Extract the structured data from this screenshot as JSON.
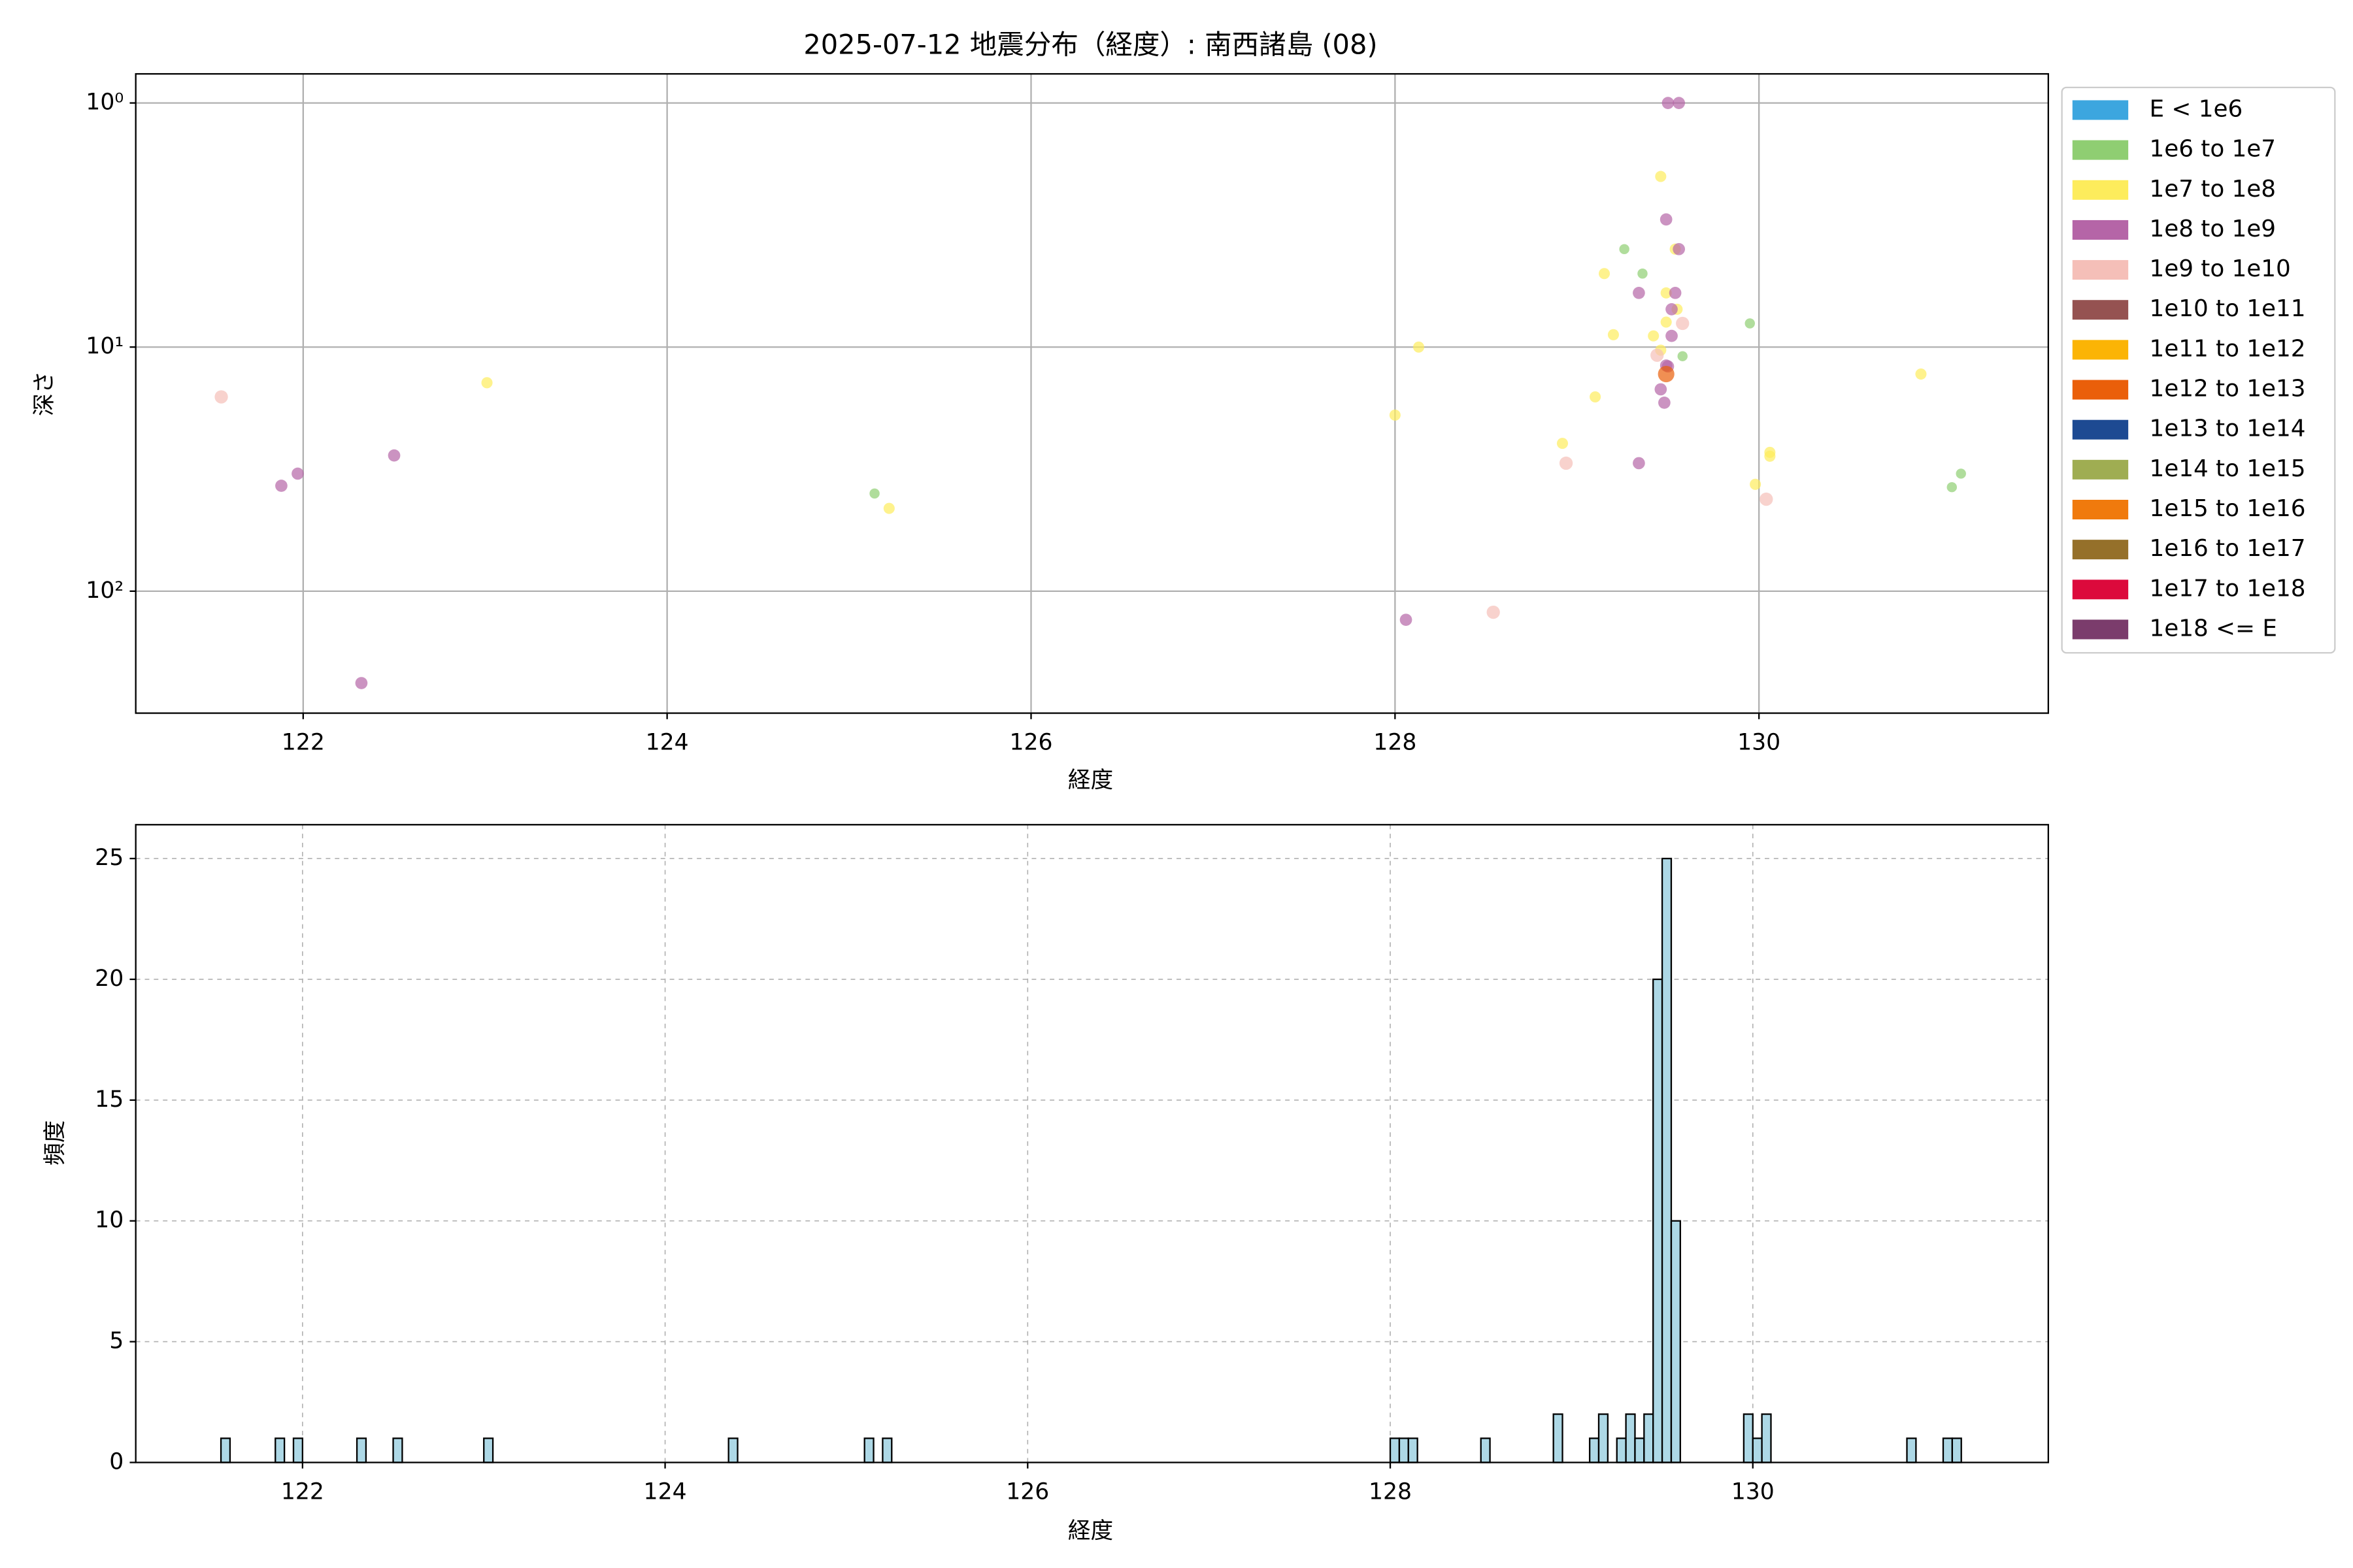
{
  "chart_data": [
    {
      "type": "scatter",
      "title": "2025-07-12 地震分布（経度）: 南西諸島 (08)",
      "xlabel": "経度",
      "ylabel": "深さ",
      "xlim": [
        121.08,
        131.59
      ],
      "xticks": [
        122,
        124,
        126,
        128,
        130
      ],
      "ylim": [
        0.76,
        316
      ],
      "yscale": "log",
      "y_inverted": true,
      "yticks": [
        {
          "value": 1,
          "label": "10⁰"
        },
        {
          "value": 10,
          "label": "10¹"
        },
        {
          "value": 100,
          "label": "10²"
        }
      ],
      "grid": true,
      "legend": "outside right",
      "series": [
        {
          "name": "E < 1e6",
          "color": "#3ca6df",
          "x": [],
          "values": []
        },
        {
          "name": "1e6 to 1e7",
          "color": "#8fce72",
          "x": [
            125.14,
            129.26,
            129.36,
            129.95,
            131.06,
            131.11,
            129.58
          ],
          "values": [
            39.8,
            3.97,
            5.0,
            8.0,
            37.5,
            33,
            10.9
          ]
        },
        {
          "name": "1e7 to 1e8",
          "color": "#fdec5c",
          "x": [
            123.01,
            125.22,
            128.13,
            128.0,
            128.92,
            129.1,
            129.15,
            129.2,
            129.46,
            129.49,
            129.55,
            129.49,
            129.42,
            129.54,
            130.06,
            130.06,
            129.98,
            130.89,
            129.46
          ],
          "values": [
            14.0,
            45.8,
            10,
            19,
            24.8,
            16,
            5.0,
            8.9,
            2.0,
            6.0,
            7.0,
            7.9,
            9.0,
            3.97,
            27,
            28,
            36.5,
            12.9,
            10.3
          ]
        },
        {
          "name": "1e8 to 1e9",
          "color": "#b565a7",
          "x": [
            121.88,
            121.97,
            122.5,
            122.32,
            128.06,
            129.34,
            129.5,
            129.56,
            129.49,
            129.34,
            129.54,
            129.52,
            129.52,
            129.5,
            129.46,
            129.48,
            129.49,
            129.56
          ],
          "values": [
            37,
            33,
            27.8,
            238,
            131,
            29.9,
            1.0,
            1.0,
            3.0,
            6.0,
            6.0,
            7.0,
            9.0,
            12.0,
            14.9,
            16.9,
            11.9,
            3.97
          ]
        },
        {
          "name": "1e9 to 1e10",
          "color": "#f5bfb8",
          "x": [
            121.55,
            128.94,
            128.54,
            130.04,
            129.58,
            129.44
          ],
          "values": [
            16.0,
            29.9,
            122,
            42,
            8,
            10.8
          ]
        },
        {
          "name": "1e10 to 1e11",
          "color": "#955251",
          "x": [],
          "values": []
        },
        {
          "name": "1e11 to 1e12",
          "color": "#fbb405",
          "x": [],
          "values": []
        },
        {
          "name": "1e12 to 1e13",
          "color": "#ea5f0a",
          "x": [
            129.49
          ],
          "values": [
            12.9
          ]
        },
        {
          "name": "1e13 to 1e14",
          "color": "#1d4a92",
          "x": [],
          "values": []
        },
        {
          "name": "1e14 to 1e15",
          "color": "#9fad52",
          "x": [],
          "values": []
        },
        {
          "name": "1e15 to 1e16",
          "color": "#f07a0d",
          "x": [],
          "values": []
        },
        {
          "name": "1e16 to 1e17",
          "color": "#95702a",
          "x": [],
          "values": []
        },
        {
          "name": "1e17 to 1e18",
          "color": "#dc0a3c",
          "x": [],
          "values": []
        },
        {
          "name": "1e18 <= E",
          "color": "#7b3c6c",
          "x": [],
          "values": []
        }
      ]
    },
    {
      "type": "histogram",
      "xlabel": "経度",
      "ylabel": "頻度",
      "xlim": [
        121.08,
        131.63
      ],
      "xticks": [
        122,
        124,
        126,
        128,
        130
      ],
      "ylim": [
        0,
        26.4
      ],
      "yticks": [
        0,
        5,
        10,
        15,
        20,
        25
      ],
      "grid": true,
      "color": "#add8e6",
      "bins": [
        121.55,
        121.6,
        121.65,
        121.7,
        121.75,
        121.8,
        121.85,
        121.9,
        121.95,
        122,
        122.05,
        122.1,
        122.15,
        122.2,
        122.25,
        122.3,
        122.35,
        122.4,
        122.45,
        122.5,
        122.55,
        122.6,
        122.65,
        122.7,
        122.75,
        122.8,
        122.85,
        122.9,
        122.95,
        123,
        123.05,
        123.1,
        123.15,
        123.2,
        123.25,
        123.3,
        123.35,
        123.4,
        123.45,
        123.5,
        123.55,
        123.6,
        123.65,
        123.7,
        123.75,
        123.8,
        123.85,
        123.9,
        123.95,
        124,
        124.05,
        124.1,
        124.15,
        124.2,
        124.25,
        124.3,
        124.35,
        124.4,
        124.45,
        124.5,
        124.55,
        124.6,
        124.65,
        124.7,
        124.75,
        124.8,
        124.85,
        124.9,
        124.95,
        125,
        125.05,
        125.1,
        125.15,
        125.2,
        125.25,
        125.3,
        125.35,
        125.4,
        125.45,
        125.5,
        125.55,
        125.6,
        125.65,
        125.7,
        125.75,
        125.8,
        125.85,
        125.9,
        125.95,
        126,
        126.05,
        126.1,
        126.15,
        126.2,
        126.25,
        126.3,
        126.35,
        126.4,
        126.45,
        126.5,
        126.55,
        126.6,
        126.65,
        126.7,
        126.75,
        126.8,
        126.85,
        126.9,
        126.95,
        127,
        127.05,
        127.1,
        127.15,
        127.2,
        127.25,
        127.3,
        127.35,
        127.4,
        127.45,
        127.5,
        127.55,
        127.6,
        127.65,
        127.7,
        127.75,
        127.8,
        127.85,
        127.9,
        127.95,
        128,
        128.05,
        128.1,
        128.15,
        128.2,
        128.25,
        128.3,
        128.35,
        128.4,
        128.45,
        128.5,
        128.55,
        128.6,
        128.65,
        128.7,
        128.75,
        128.8,
        128.85,
        128.9,
        128.95,
        129,
        129.05,
        129.1,
        129.15,
        129.2,
        129.25,
        129.3,
        129.35,
        129.4,
        129.45,
        129.5,
        129.55,
        129.6,
        129.65,
        129.7,
        129.75,
        129.8,
        129.85,
        129.9,
        129.95,
        130,
        130.05,
        130.1,
        130.15,
        130.2,
        130.25,
        130.3,
        130.35,
        130.4,
        130.45,
        130.5,
        130.55,
        130.6,
        130.65,
        130.7,
        130.75,
        130.8,
        130.85,
        130.9,
        130.95,
        131,
        131.05,
        131.1,
        131.15
      ],
      "counts": [
        1,
        0,
        0,
        0,
        0,
        0,
        1,
        0,
        1,
        0,
        0,
        0,
        0,
        0,
        0,
        1,
        0,
        0,
        0,
        1,
        0,
        0,
        0,
        0,
        0,
        0,
        0,
        0,
        0,
        1,
        0,
        0,
        0,
        0,
        0,
        0,
        0,
        0,
        0,
        0,
        0,
        0,
        0,
        0,
        0,
        0,
        0,
        0,
        0,
        0,
        0,
        0,
        0,
        0,
        0,
        0,
        1,
        0,
        0,
        0,
        0,
        0,
        0,
        0,
        0,
        0,
        0,
        0,
        0,
        0,
        0,
        1,
        0,
        1,
        0,
        0,
        0,
        0,
        0,
        0,
        0,
        0,
        0,
        0,
        0,
        0,
        0,
        0,
        0,
        0,
        0,
        0,
        0,
        0,
        0,
        0,
        0,
        0,
        0,
        0,
        0,
        0,
        0,
        0,
        0,
        0,
        0,
        0,
        0,
        0,
        0,
        0,
        0,
        0,
        0,
        0,
        0,
        0,
        0,
        0,
        0,
        0,
        0,
        0,
        0,
        0,
        0,
        0,
        0,
        1,
        1,
        1,
        0,
        0,
        0,
        0,
        0,
        0,
        0,
        1,
        0,
        0,
        0,
        0,
        0,
        0,
        0,
        2,
        0,
        0,
        0,
        1,
        2,
        0,
        1,
        2,
        1,
        2,
        20,
        25,
        10,
        0,
        0,
        0,
        0,
        0,
        0,
        0,
        2,
        1,
        2,
        0,
        0,
        0,
        0,
        0,
        0,
        0,
        0,
        0,
        0,
        0,
        0,
        0,
        0,
        0,
        1,
        0,
        0,
        0,
        1,
        1
      ]
    }
  ]
}
